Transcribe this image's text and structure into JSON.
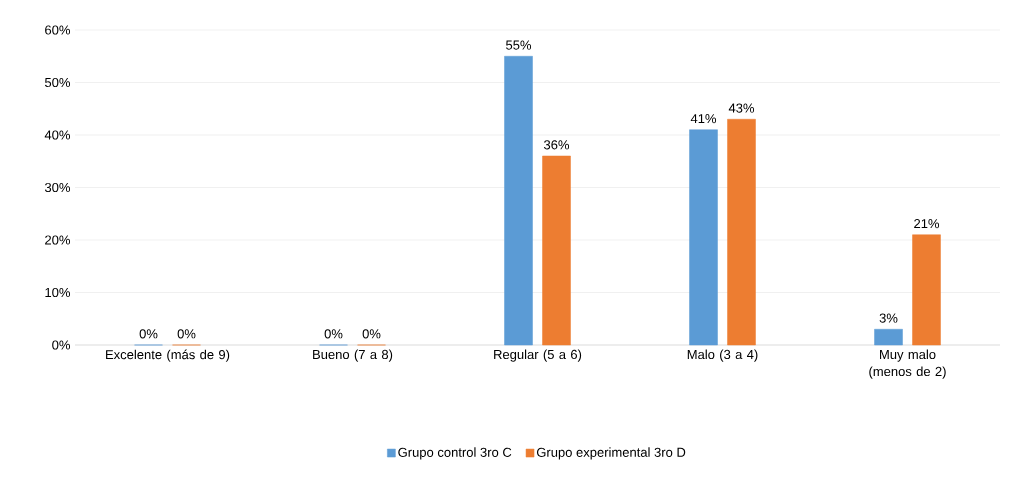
{
  "chart_data": {
    "type": "bar",
    "categories": [
      "Excelente (más de 9)",
      "Bueno (7 a 8)",
      "Regular (5 a 6)",
      "Malo (3 a 4)",
      "Muy malo (menos de 2)"
    ],
    "series": [
      {
        "name": "Grupo control 3ro C",
        "color": "#5b9bd5",
        "values": [
          0,
          0,
          55,
          41,
          3
        ],
        "value_labels": [
          "0%",
          "0%",
          "55%",
          "41%",
          "3%"
        ]
      },
      {
        "name": "Grupo experimental 3ro D",
        "color": "#ed7d31",
        "values": [
          0,
          0,
          36,
          43,
          21
        ],
        "value_labels": [
          "0%",
          "0%",
          "36%",
          "43%",
          "21%"
        ]
      }
    ],
    "ylim": [
      0,
      60
    ],
    "yticks": [
      {
        "value": 0,
        "label": "0%"
      },
      {
        "value": 10,
        "label": "10%"
      },
      {
        "value": 20,
        "label": "20%"
      },
      {
        "value": 30,
        "label": "30%"
      },
      {
        "value": 40,
        "label": "40%"
      },
      {
        "value": 50,
        "label": "50%"
      },
      {
        "value": 60,
        "label": "60%"
      }
    ],
    "grid": "y",
    "legend": "bottom"
  }
}
